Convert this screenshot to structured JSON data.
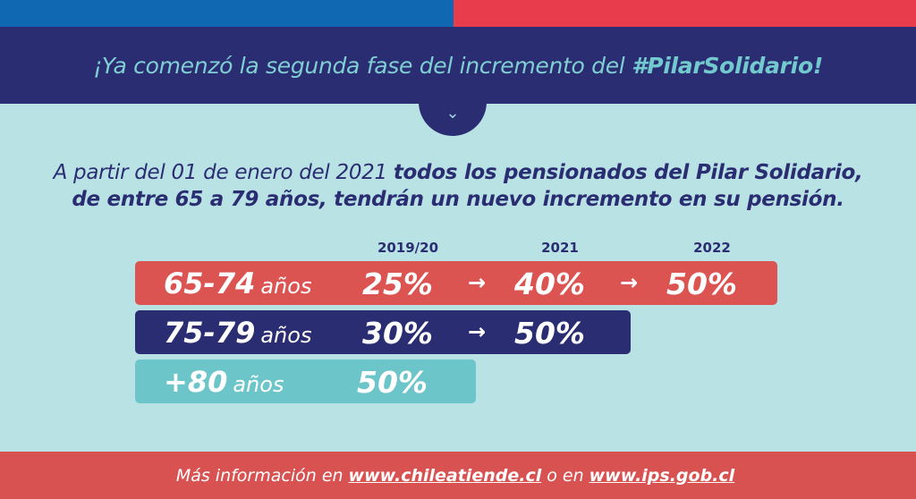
{
  "header": {
    "title_prefix": "¡Ya comenzó la segunda fase del incremento del ",
    "title_hashtag": "#PilarSolidario!",
    "chevron": "chevron-down-icon"
  },
  "intro": {
    "plain": "A partir del 01 de enero del 2021 ",
    "bold_line1": "todos los pensionados del Pilar Solidario,",
    "bold_line2": "de entre 65 a 79 años, tendrán un nuevo incremento en su pensión."
  },
  "years": [
    "2019/20",
    "2021",
    "2022"
  ],
  "arrow": "→",
  "rows": [
    {
      "age": "65-74",
      "unit": "años",
      "values": [
        "25%",
        "40%",
        "50%"
      ],
      "color": "#dc5452"
    },
    {
      "age": "75-79",
      "unit": "años",
      "values": [
        "30%",
        "50%"
      ],
      "color": "#2b2d72"
    },
    {
      "age": "+80",
      "unit": "años",
      "values": [
        "50%"
      ],
      "color": "#6cc5c9"
    }
  ],
  "footer": {
    "prefix": "Más información en",
    "link1": "www.chileatiende.cl",
    "middle": "o en",
    "link2": "www.ips.gob.cl"
  }
}
